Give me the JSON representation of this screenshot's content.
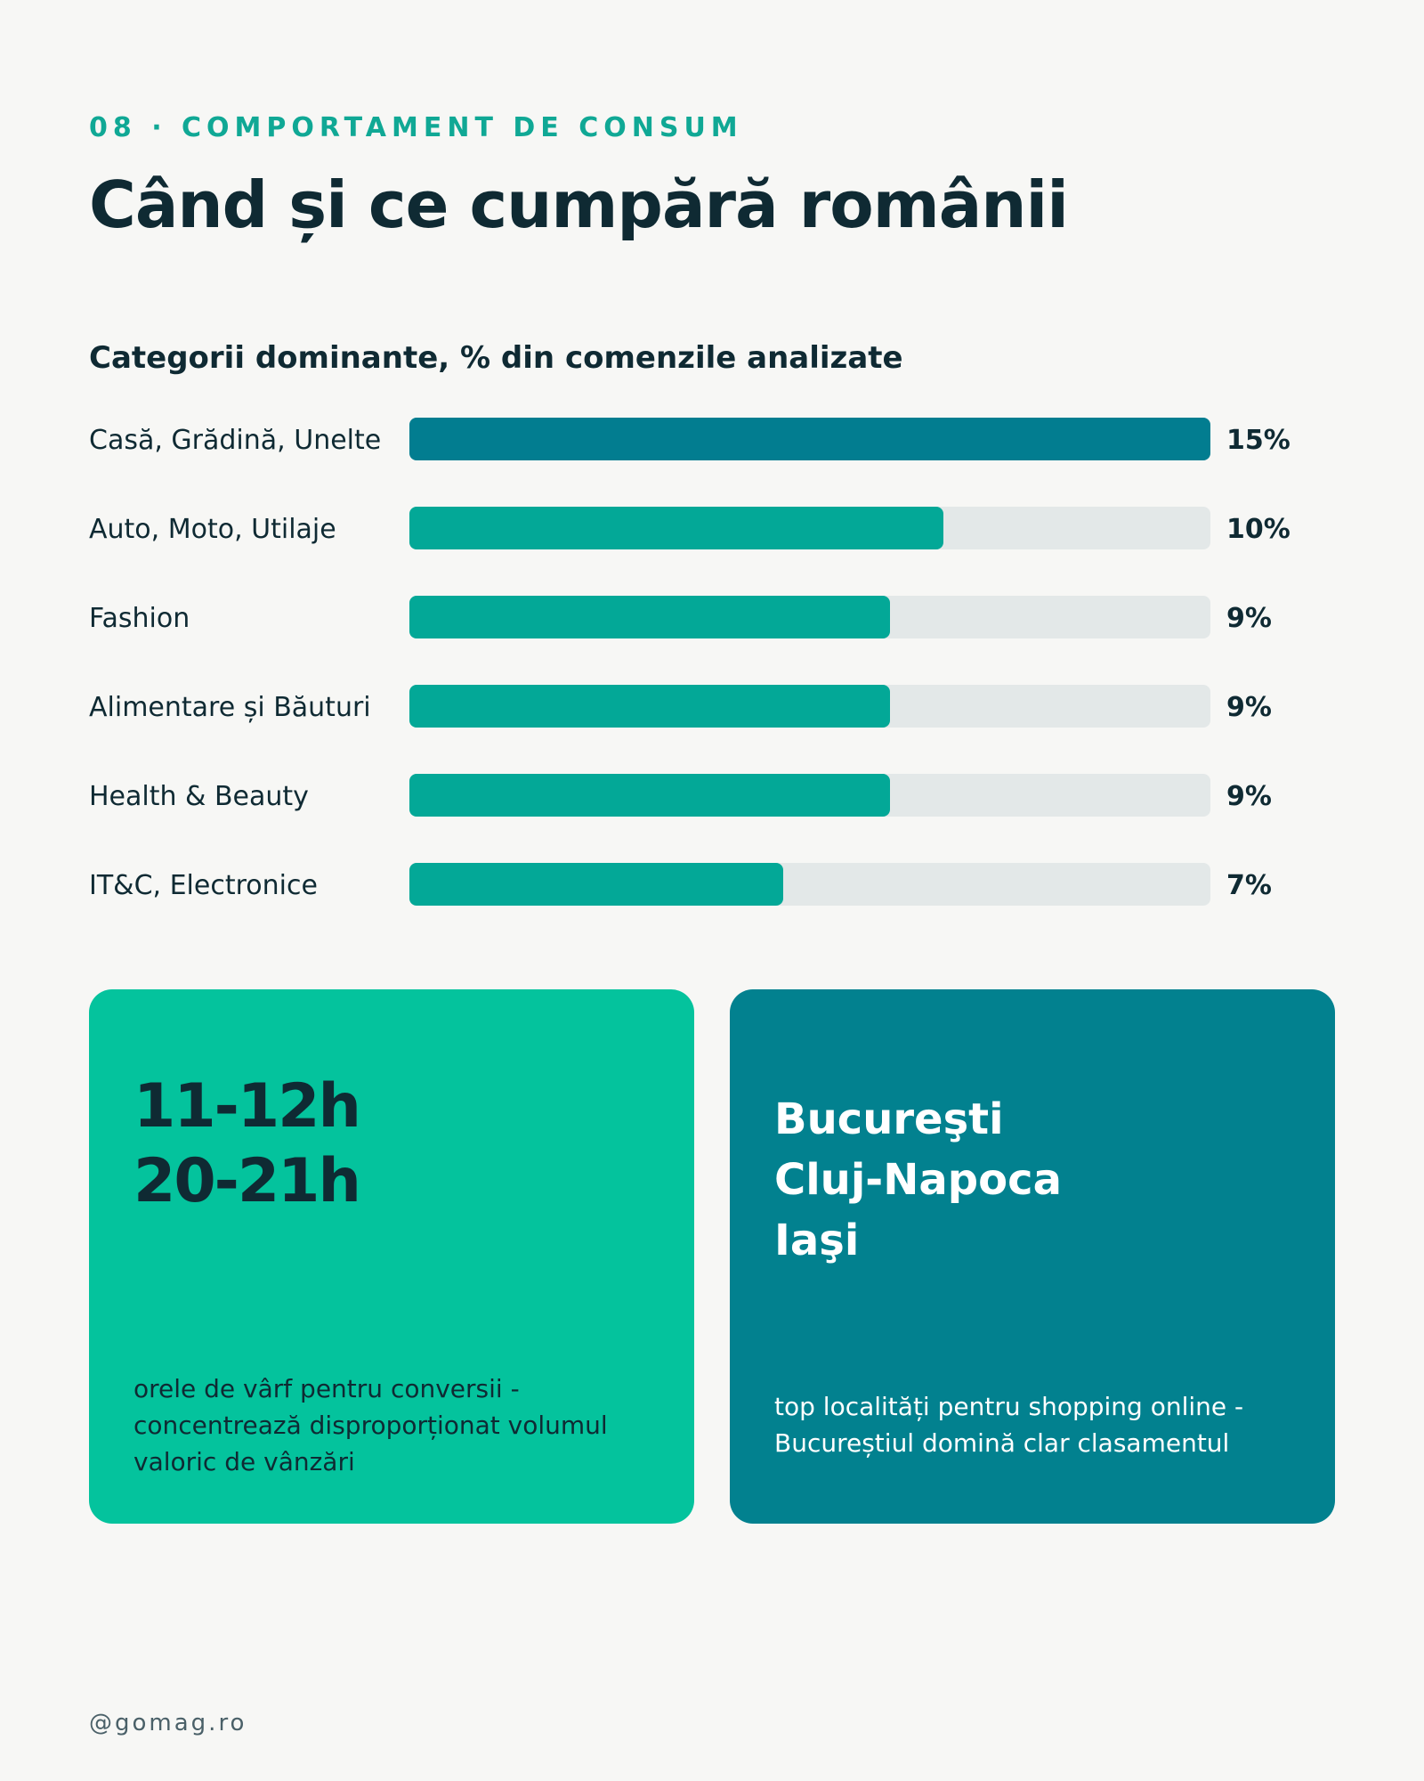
{
  "header": {
    "eyebrow": "08 · COMPORTAMENT DE CONSUM",
    "title": "Când și ce cumpără românii"
  },
  "chart_data": {
    "type": "bar",
    "orientation": "horizontal",
    "title": "Categorii dominante, % din comenzile analizate",
    "categories": [
      "Casă, Grădină, Unelte",
      "Auto, Moto, Utilaje",
      "Fashion",
      "Alimentare și Băuturi",
      "Health & Beauty",
      "IT&C, Electronice"
    ],
    "values": [
      15,
      10,
      9,
      9,
      9,
      7
    ],
    "value_labels": [
      "15%",
      "10%",
      "9%",
      "9%",
      "9%",
      "7%"
    ],
    "xlim": [
      0,
      15
    ],
    "grid": false,
    "colors": {
      "highlight": "#027d90",
      "bar": "#03a897",
      "track": "#e3e8e8"
    }
  },
  "cards": {
    "peak_hours": {
      "lines": [
        "11-12h",
        "20-21h"
      ],
      "description": "orele de vârf pentru conversii - concentrează disproporționat volumul valoric de vânzări"
    },
    "top_cities": {
      "lines": [
        "Bucureşti",
        "Cluj-Napoca",
        "Iaşi"
      ],
      "description": "top localități pentru shopping online - Bucureștiul domină clar clasamentul"
    }
  },
  "footer": {
    "handle": "@gomag.ro"
  },
  "colors": {
    "accent_green": "#04c39d",
    "accent_teal": "#02818f",
    "text_dark": "#0f2a33",
    "eyebrow": "#10a895"
  }
}
